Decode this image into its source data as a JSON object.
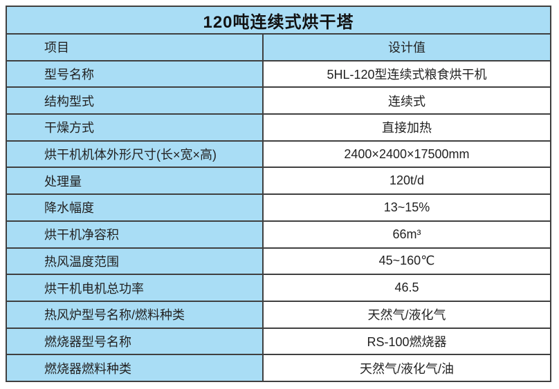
{
  "table": {
    "title": "120吨连续式烘干塔",
    "header": {
      "item": "项目",
      "value": "设计值"
    },
    "rows": [
      {
        "label": "型号名称",
        "value": "5HL-120型连续式粮食烘干机"
      },
      {
        "label": "结构型式",
        "value": "连续式"
      },
      {
        "label": "干燥方式",
        "value": "直接加热"
      },
      {
        "label": "烘干机机体外形尺寸(长×宽×高)",
        "value": "2400×2400×17500mm"
      },
      {
        "label": "处理量",
        "value": "120t/d"
      },
      {
        "label": "降水幅度",
        "value": "13~15%"
      },
      {
        "label": "烘干机净容积",
        "value": "66m³"
      },
      {
        "label": "热风温度范围",
        "value": "45~160℃"
      },
      {
        "label": "烘干机电机总功率",
        "value": "46.5"
      },
      {
        "label": "热风炉型号名称/燃料种类",
        "value": "天然气/液化气"
      },
      {
        "label": "燃烧器型号名称",
        "value": "RS-100燃烧器"
      },
      {
        "label": "燃烧器燃料种类",
        "value": "天然气/液化气/油"
      }
    ],
    "colors": {
      "cell_blue": "#a9ddf5",
      "border": "#3f3f3f",
      "text": "#222222",
      "value_bg": "#ffffff",
      "page_bg": "#ffffff"
    }
  }
}
